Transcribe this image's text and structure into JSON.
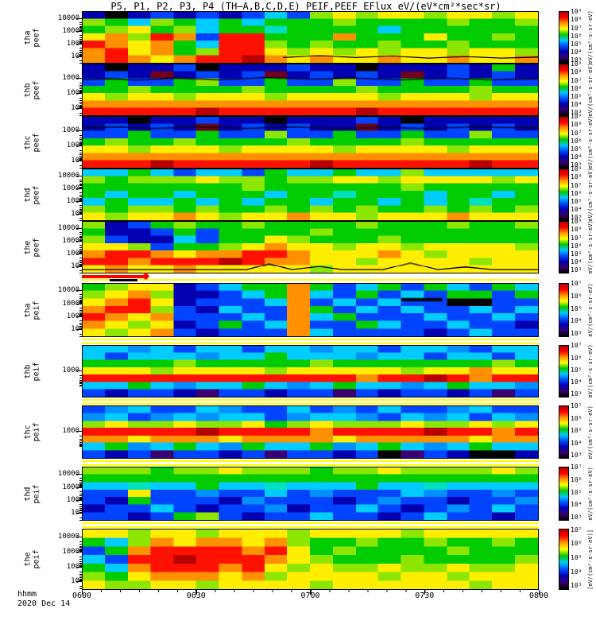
{
  "chart_data": {
    "type": "heatmap",
    "title": "P5, P1, P2, P3, P4 (TH–A,B,C,D,E)  PEIF,PEEF EFlux eV/(eV*cm²*sec*sr)",
    "x_axis": {
      "label": "hhmm",
      "date_label": "2020 Dec 14",
      "ticks": [
        "0600",
        "0630",
        "0700",
        "0730",
        "0800"
      ]
    },
    "energy_axis": {
      "scale": "log",
      "units": "eV",
      "tick_values_shown": [
        10000,
        1000,
        100,
        10
      ]
    },
    "colorbar_label": "[eV/(cm²-s-sr-eV)]",
    "colorbar_colors": [
      "#b40000",
      "#ff0000",
      "#ff9600",
      "#ffff00",
      "#00c800",
      "#00c8ff",
      "#0050ff",
      "#0000b4",
      "#38006e",
      "#000000"
    ],
    "separator_color": "#ffff00",
    "highlight_bar": {
      "color": "#ff0000",
      "black_segment": true
    },
    "palette": {
      "K": "#000000",
      "P": "#3c0070",
      "N": "#0000b0",
      "B": "#0044ff",
      "b": "#0090ff",
      "C": "#00ccff",
      "T": "#00e0c0",
      "G": "#00cc00",
      "g": "#8ce600",
      "Y": "#ffee00",
      "O": "#ff9000",
      "R": "#ff1100",
      "D": "#b80000",
      "M": "#700020",
      "W": "#ffffff"
    },
    "panels": [
      {
        "probe": "tha",
        "quantity": "peef",
        "yticks": [
          {
            "label": "10000",
            "pct": 13
          },
          {
            "label": "1000",
            "pct": 38
          },
          {
            "label": "100",
            "pct": 62
          },
          {
            "label": "10",
            "pct": 86
          }
        ],
        "cbar_ticks": [
          "10⁹",
          "10⁸",
          "10⁷",
          "10⁶",
          "10⁵",
          "10⁴",
          "10³"
        ],
        "rows": [
          "NKNBNBNBCBgYgYYgYYgY",
          "gGCgGCGCGGGgGGGGgGGg",
          "GgYGgCGGTGGGGCGGGGGG",
          "YOgROBRRGGGOGGGYGGgG",
          "ROYOGCRRgGgGGgGGgGGG",
          "ORYOGgRRYgYgYgYYgYYg",
          "OROYORRDOYOYYOYYOYYO"
        ],
        "traces": [
          [
            [
              44,
              90
            ],
            [
              52,
              86
            ],
            [
              60,
              90
            ],
            [
              68,
              87
            ],
            [
              76,
              91
            ],
            [
              84,
              88
            ],
            [
              92,
              91
            ],
            [
              100,
              89
            ]
          ]
        ],
        "marks": []
      },
      {
        "probe": "thb",
        "quantity": "peef",
        "yticks": [
          {
            "label": "1000",
            "pct": 27
          },
          {
            "label": "100",
            "pct": 56
          },
          {
            "label": "10",
            "pct": 85
          }
        ],
        "cbar_ticks": [
          "10⁹",
          "10⁸",
          "10⁷",
          "10⁶",
          "10⁵",
          "10⁴",
          "10³"
        ],
        "rows": [
          "NKNNBKNNNBNNKNNNBNGN",
          "NBNMNBNBMNBNBNMNBNBN",
          "BGBBGgBBGBBgBBGBBGBB",
          "GGgGGGGgGGGGgGGGGgGG",
          "YgYYgYYYgYYYYgYYYgYY",
          "OOOOOOOOOOOOOOOOOOOO",
          "RRRRRDRRRRRRDRRRRRRR"
        ],
        "traces": [
          [
            [
              0,
              30
            ],
            [
              6,
              28
            ],
            [
              12,
              31
            ],
            [
              20,
              27
            ],
            [
              30,
              30
            ],
            [
              40,
              26
            ],
            [
              50,
              29
            ],
            [
              60,
              27
            ],
            [
              70,
              30
            ],
            [
              80,
              27
            ],
            [
              90,
              30
            ],
            [
              100,
              28
            ]
          ]
        ],
        "marks": []
      },
      {
        "probe": "thc",
        "quantity": "peef",
        "yticks": [
          {
            "label": "1000",
            "pct": 27
          },
          {
            "label": "100",
            "pct": 56
          },
          {
            "label": "10",
            "pct": 85
          }
        ],
        "cbar_ticks": [
          "10⁹",
          "10⁸",
          "10⁷",
          "10⁶",
          "10⁵",
          "10⁴",
          "10³"
        ],
        "rows": [
          "NNKNNBNNKNNNBNKNNNNN",
          "NBNBNMNBNBNNMNBNBNBN",
          "BBGBBGBBgBBGBBGBBgBB",
          "GgGGgGGGGgGGGGgGGGGG",
          "YYgYYYgYYYYgYYYYgYYY",
          "OOOOOOOOOOOOOOOOOOOO",
          "RRRDRRRRRRDRRRRRRDRR"
        ],
        "traces": [
          [
            [
              0,
              22
            ],
            [
              8,
              20
            ],
            [
              16,
              23
            ],
            [
              26,
              20
            ],
            [
              36,
              23
            ],
            [
              46,
              20
            ],
            [
              56,
              23
            ],
            [
              66,
              21
            ],
            [
              76,
              23
            ],
            [
              86,
              20
            ],
            [
              100,
              22
            ]
          ]
        ],
        "marks": []
      },
      {
        "probe": "thd",
        "quantity": "peef",
        "yticks": [
          {
            "label": "10000",
            "pct": 13
          },
          {
            "label": "1000",
            "pct": 38
          },
          {
            "label": "100",
            "pct": 62
          },
          {
            "label": "10",
            "pct": 86
          }
        ],
        "cbar_ticks": [
          "10⁹",
          "10⁸",
          "10⁷",
          "10⁶",
          "10⁵",
          "10⁴",
          "10³"
        ],
        "rows": [
          "CCGCBCCBGCCGCCgCCCCC",
          "gGgggYggGggYYgYYYYgY",
          "GGGGGGGgGGGGGGgGGGGG",
          "GCGGCGGGCGGTGGGCGGCG",
          "CGCCGCGCGGCGGCGCGTGG",
          "gGggGgGGgGgGgGGgGgGg",
          "YgYYOYgYYOYYgYYYOYYY"
        ],
        "traces": [],
        "marks": []
      },
      {
        "probe": "the",
        "quantity": "peef",
        "yticks": [
          {
            "label": "10000",
            "pct": 13
          },
          {
            "label": "1000",
            "pct": 38
          },
          {
            "label": "100",
            "pct": 62
          },
          {
            "label": "10",
            "pct": 86
          }
        ],
        "cbar_ticks": [
          "10⁹",
          "10⁸",
          "10⁷",
          "10⁶",
          "10⁵",
          "10⁴",
          "10³"
        ],
        "rows": [
          "gNBGgGGgGGGGgGGGgGGg",
          "GNNBGBGGGGgGGGGGGGGG",
          "gBNNCBGGYgGGGgGGGGGG",
          "YYgBGGgYOYYgYYgYYYYg",
          "ORROYOORROYYYOYgYYYY",
          "RRORRRDROOYYgYYYYgYY",
          "YOYYOYYYYYgYYYYYYYYY"
        ],
        "traces": [
          [
            [
              0,
              94
            ],
            [
              36,
              94
            ],
            [
              41,
              83
            ],
            [
              46,
              94
            ],
            [
              52,
              88
            ],
            [
              57,
              94
            ],
            [
              66,
              94
            ],
            [
              72,
              81
            ],
            [
              78,
              94
            ],
            [
              84,
              89
            ],
            [
              90,
              94
            ],
            [
              100,
              94
            ]
          ]
        ],
        "marks": []
      },
      {
        "probe": "tha",
        "quantity": "peif",
        "yticks": [
          {
            "label": "10000",
            "pct": 13
          },
          {
            "label": "1000",
            "pct": 38
          },
          {
            "label": "100",
            "pct": 62
          },
          {
            "label": "10",
            "pct": 86
          }
        ],
        "cbar_ticks": [
          "10⁷",
          "10⁶",
          "10⁵",
          "10⁴",
          "10³"
        ],
        "rows": [
          "GgYYNBCGGOGBCGBGCBGC",
          "gYOgNNBCGOCBGBCBGGBG",
          "YORYNBBBCOBCBCBBKKBB",
          "ORRgBNCBBOGBCBCBBCBC",
          "ROYOBBBCBOCGBBBCBBCB",
          "OYgYNBGBCOBBGCBBCBBN",
          "YgYOBNBBBOCBBBBNBCBB"
        ],
        "traces": [],
        "marks": [
          {
            "x": 70,
            "y": 27,
            "w": 9,
            "h": 6
          }
        ]
      },
      {
        "probe": "thb",
        "quantity": "peif",
        "yticks": [
          {
            "label": "1000",
            "pct": 48
          }
        ],
        "cbar_ticks": [
          "10⁷",
          "10⁶",
          "10⁵",
          "10⁴",
          "10³"
        ],
        "rows": [
          "CCbCBCCBCCbCCBCCbBCC",
          "CBCCCbCCGCCCbCCBCCBC",
          "GGGGgGGGGGgGGGGGGGgG",
          "YYYgYYYYgYYYYYgYYOYY",
          "RRRRRRRRRRRRORRDRORR",
          "CCGCbCCGCbCGCCbCGCCb",
          "BNBBNPBBNBBPBNBBNBPB"
        ],
        "traces": [],
        "marks": []
      },
      {
        "probe": "thc",
        "quantity": "peif",
        "yticks": [
          {
            "label": "1000",
            "pct": 48
          }
        ],
        "cbar_ticks": [
          "10⁷",
          "10⁶",
          "10⁵",
          "10⁴",
          "10³"
        ],
        "rows": [
          "BbCBBCbBBCBbBCBBbCBB",
          "bCBbCbCCBbCCbBCbCBCb",
          "gYggYggYGgYgggYggYgY",
          "RRRRRDRRRRORRRRDRROR",
          "OOYOOOYOOOOYOOOOOYOO",
          "CGbCGCbGCCGbCGCbCGCC",
          "BNBPBBNBPBBNBKPBNKKN"
        ],
        "traces": [],
        "marks": []
      },
      {
        "probe": "thd",
        "quantity": "peif",
        "yticks": [
          {
            "label": "10000",
            "pct": 13
          },
          {
            "label": "1000",
            "pct": 38
          },
          {
            "label": "100",
            "pct": 62
          },
          {
            "label": "10",
            "pct": 86
          }
        ],
        "cbar_ticks": [
          "10⁷",
          "10⁶",
          "10⁵",
          "10⁴",
          "10³"
        ],
        "rows": [
          "gggGggYgggGggYggggYg",
          "GGGGGGGGGGGGGGGGGGGG",
          "CCTCCGCCTCCCGCCTCCCC",
          "BBYBBbBBCBbBBBCbBBbB",
          "BNGBBBNbBBBNBbBBNBBb",
          "NBBCBNBBbNBBCBNBbBCB",
          "BBNBGgBNBBCBBNBCBBNB"
        ],
        "traces": [],
        "marks": []
      },
      {
        "probe": "the",
        "quantity": "peif",
        "yticks": [
          {
            "label": "10000",
            "pct": 13
          },
          {
            "label": "1000",
            "pct": 38
          },
          {
            "label": "100",
            "pct": 62
          },
          {
            "label": "10",
            "pct": 86
          }
        ],
        "cbar_ticks": [
          "10⁷",
          "10⁶",
          "10⁵",
          "10⁴",
          "10³"
        ],
        "rows": [
          "YYgYYgYYYgYYYYgYYYYY",
          "GCgOYOOYOgGGgGGgGGgG",
          "BGORRRRORYGgGGGGgGGG",
          "CBRRDRRROYgGGGgGGGGg",
          "GCORRRORYgYggYggYggY",
          "gGYOOOYOgYYYYgYYgYYY",
          "YggYYgYYYYgYYYYYYgYY"
        ],
        "traces": [],
        "marks": []
      }
    ]
  }
}
